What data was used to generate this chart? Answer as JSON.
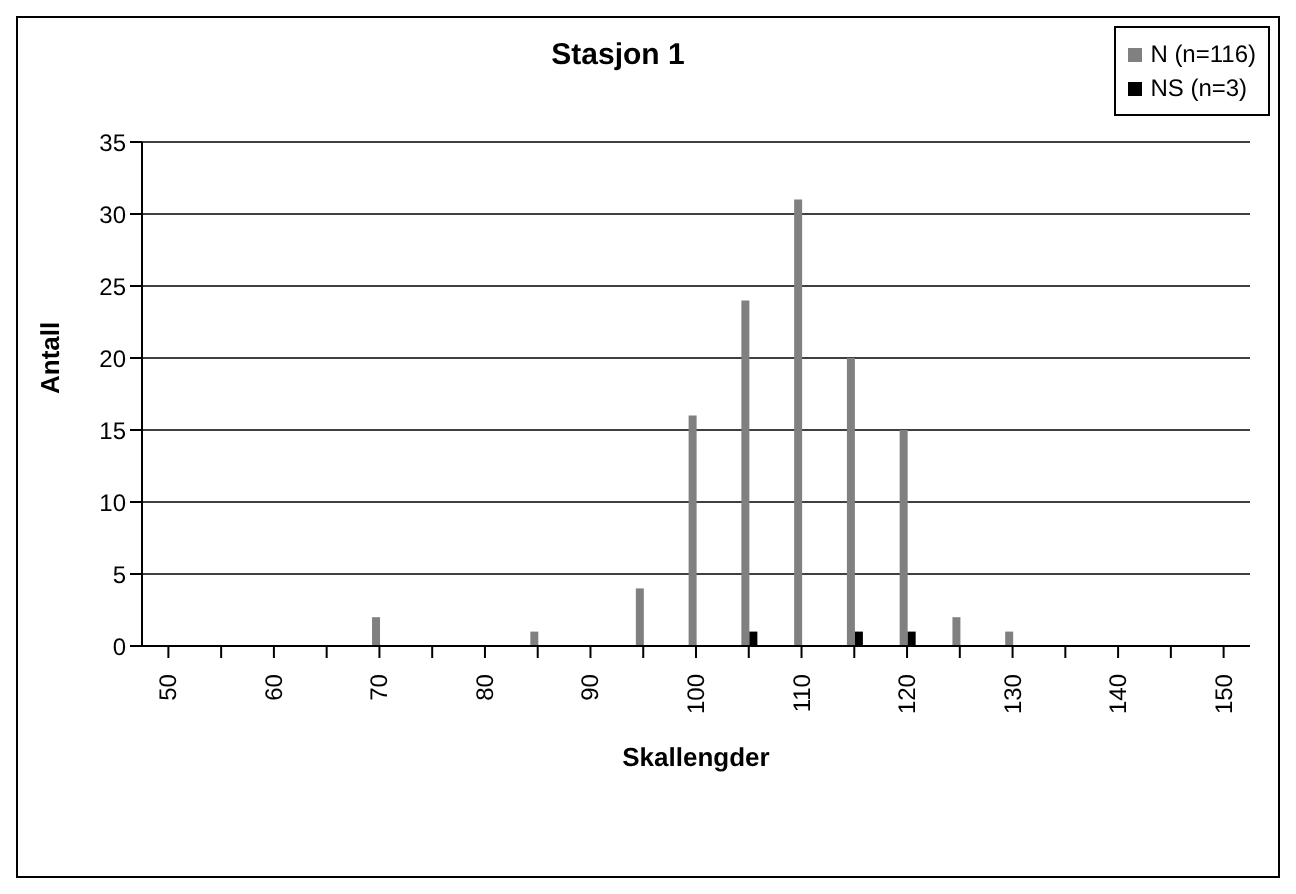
{
  "chart_data": {
    "type": "bar",
    "title": "Stasjon 1",
    "xlabel": "Skallengder",
    "ylabel": "Antall",
    "categories": [
      "50",
      null,
      "60",
      null,
      "70",
      null,
      "80",
      null,
      "90",
      null,
      "100",
      null,
      "110",
      null,
      "120",
      null,
      "130",
      null,
      "140",
      null,
      "150"
    ],
    "series": [
      {
        "name": "N (n=116)",
        "color": "#808080",
        "values": [
          0,
          0,
          0,
          0,
          2,
          0,
          0,
          1,
          0,
          4,
          16,
          24,
          31,
          20,
          15,
          2,
          1,
          0,
          0,
          0,
          0
        ]
      },
      {
        "name": "NS (n=3)",
        "color": "#000000",
        "values": [
          0,
          0,
          0,
          0,
          0,
          0,
          0,
          0,
          0,
          0,
          0,
          1,
          0,
          1,
          1,
          0,
          0,
          0,
          0,
          0,
          0
        ]
      }
    ],
    "ylim": [
      0,
      35
    ],
    "yticks": [
      0,
      5,
      10,
      15,
      20,
      25,
      30,
      35
    ],
    "grid": "y",
    "legend": "top right"
  }
}
